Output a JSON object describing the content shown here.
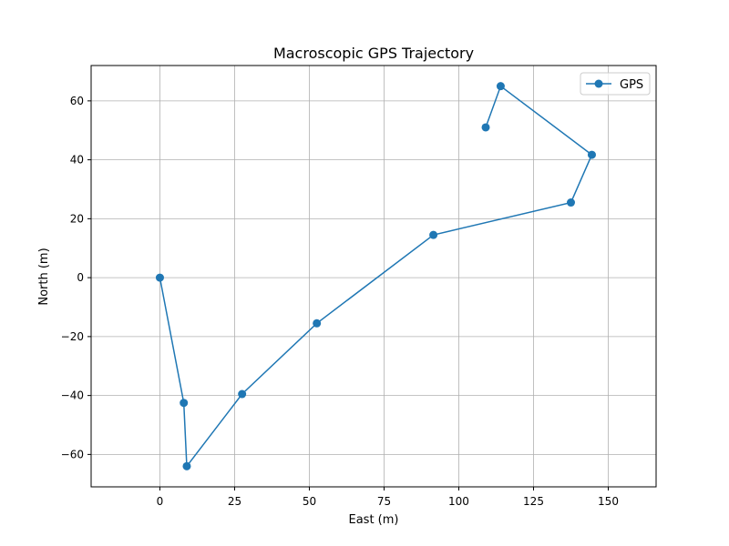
{
  "chart_data": {
    "type": "line",
    "title": "Macroscopic GPS Trajectory",
    "xlabel": "East (m)",
    "ylabel": "North (m)",
    "xlim": [
      -23,
      166
    ],
    "ylim": [
      -71,
      72
    ],
    "xticks": [
      0,
      25,
      50,
      75,
      100,
      125,
      150
    ],
    "yticks": [
      -60,
      -40,
      -20,
      0,
      20,
      40,
      60
    ],
    "xtick_labels": [
      "0",
      "25",
      "50",
      "75",
      "100",
      "125",
      "150"
    ],
    "ytick_labels": [
      "−60",
      "−40",
      "−20",
      "0",
      "20",
      "40",
      "60"
    ],
    "grid": true,
    "legend_position": "top-right",
    "series": [
      {
        "name": "GPS",
        "color": "#1f77b4",
        "marker": "circle",
        "points": [
          {
            "x": 0,
            "y": 0
          },
          {
            "x": 8,
            "y": -42.5
          },
          {
            "x": 9,
            "y": -64
          },
          {
            "x": 27.5,
            "y": -39.5
          },
          {
            "x": 52.5,
            "y": -15.5
          },
          {
            "x": 91.5,
            "y": 14.5
          },
          {
            "x": 137.5,
            "y": 25.5
          },
          {
            "x": 144.5,
            "y": 41.7
          },
          {
            "x": 114,
            "y": 65
          },
          {
            "x": 109,
            "y": 51
          }
        ]
      }
    ]
  }
}
